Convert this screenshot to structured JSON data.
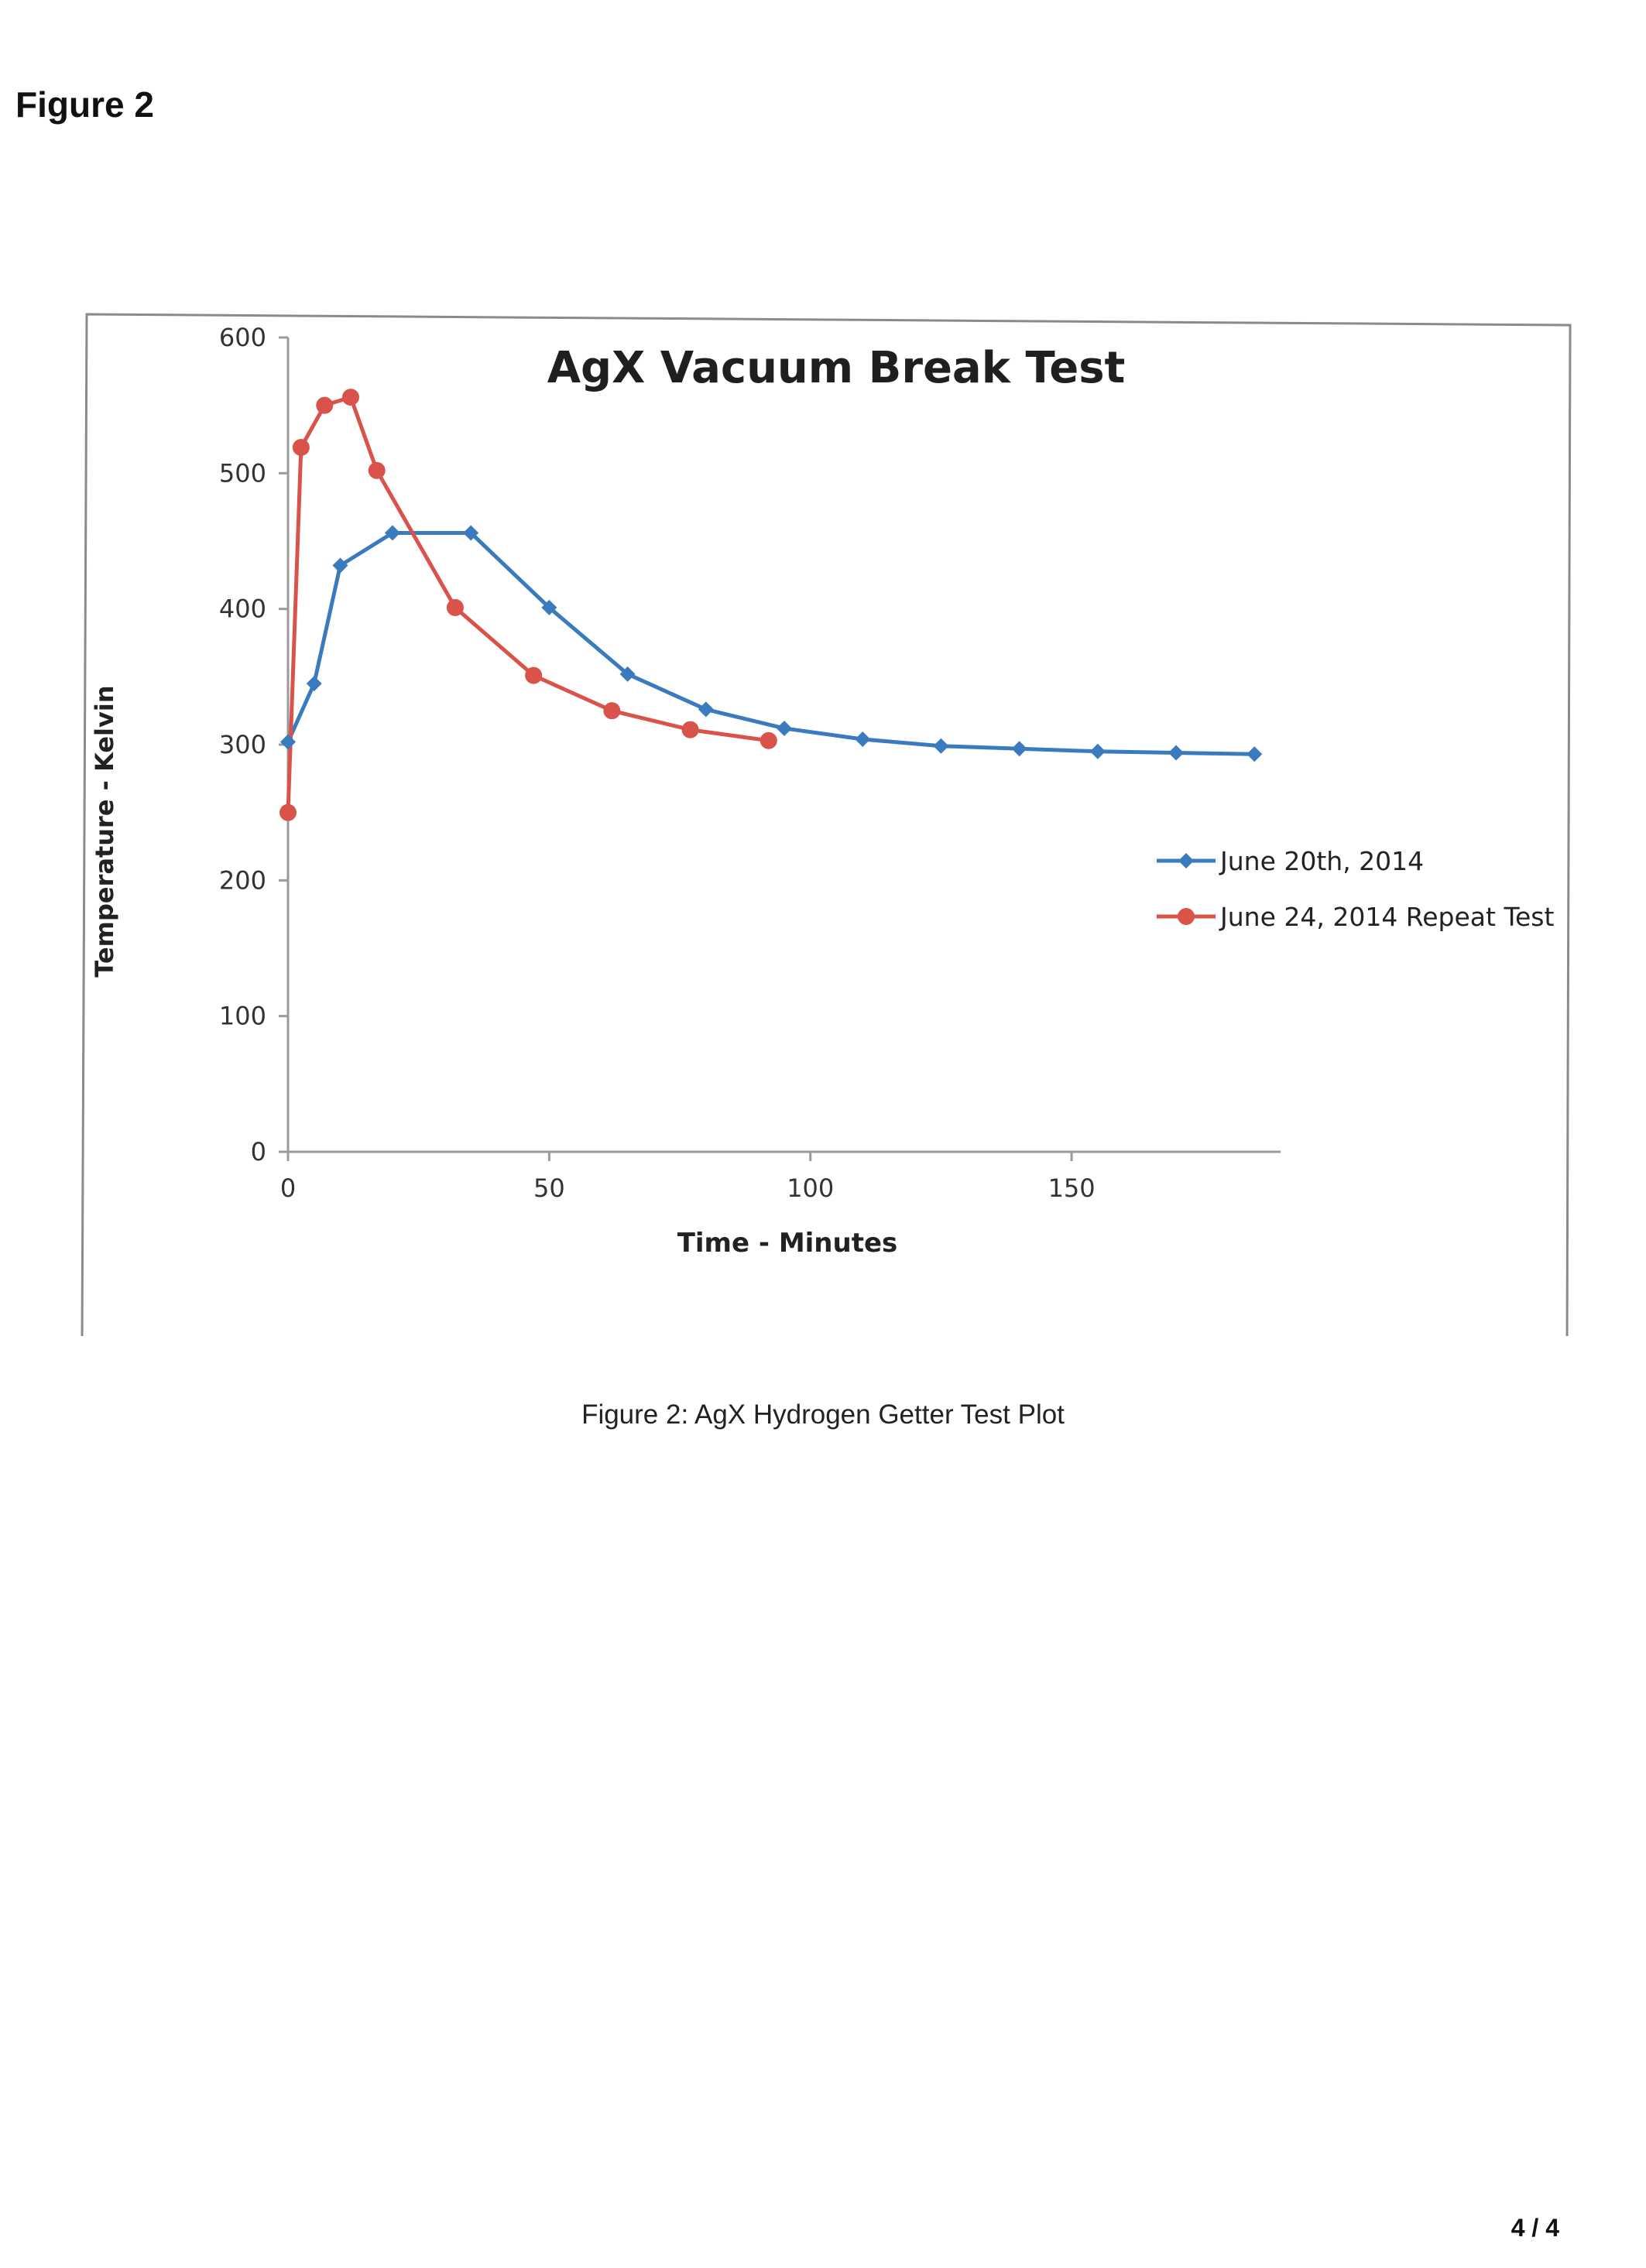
{
  "page": {
    "heading": "Figure 2",
    "caption": "Figure 2:  AgX Hydrogen Getter Test Plot",
    "page_number": "4 / 4"
  },
  "chart_data": {
    "type": "line",
    "title": "AgX Vacuum Break Test",
    "xlabel": "Time - Minutes",
    "ylabel": "Temperature - Kelvin",
    "xlim": [
      0,
      190
    ],
    "ylim": [
      0,
      600
    ],
    "xticks": [
      0,
      50,
      100,
      150
    ],
    "yticks": [
      0,
      100,
      200,
      300,
      400,
      500,
      600
    ],
    "grid": false,
    "legend_position": "right",
    "series": [
      {
        "name": "June 20th, 2014",
        "color": "#3a7bbf",
        "marker": "diamond",
        "points": [
          [
            0,
            302
          ],
          [
            5,
            345
          ],
          [
            10,
            432
          ],
          [
            20,
            456
          ],
          [
            35,
            456
          ],
          [
            50,
            401
          ],
          [
            65,
            352
          ],
          [
            80,
            326
          ],
          [
            95,
            312
          ],
          [
            110,
            304
          ],
          [
            125,
            299
          ],
          [
            140,
            297
          ],
          [
            155,
            295
          ],
          [
            170,
            294
          ],
          [
            185,
            293
          ]
        ]
      },
      {
        "name": "June 24, 2014 Repeat Test",
        "color": "#d9534a",
        "marker": "circle",
        "points": [
          [
            0,
            250
          ],
          [
            2.5,
            519
          ],
          [
            7,
            550
          ],
          [
            12,
            556
          ],
          [
            17,
            502
          ],
          [
            32,
            401
          ],
          [
            47,
            351
          ],
          [
            62,
            325
          ],
          [
            77,
            311
          ],
          [
            92,
            303
          ]
        ]
      }
    ]
  }
}
